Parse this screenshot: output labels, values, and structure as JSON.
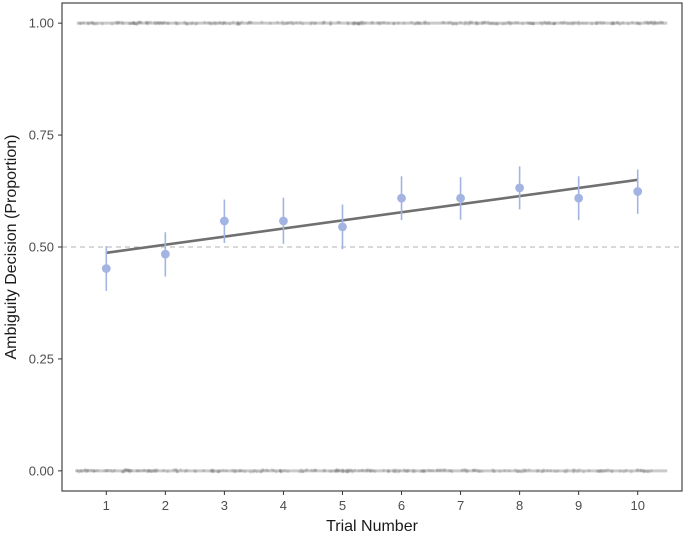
{
  "chart_data": {
    "type": "scatter",
    "title": "",
    "xlabel": "Trial Number",
    "ylabel": "Ambiguity Decision (Proportion)",
    "x_ticks": [
      1,
      2,
      3,
      4,
      5,
      6,
      7,
      8,
      9,
      10
    ],
    "x_tick_labels": [
      "1",
      "2",
      "3",
      "4",
      "5",
      "6",
      "7",
      "8",
      "9",
      "10"
    ],
    "y_ticks": [
      0,
      0.25,
      0.5,
      0.75,
      1
    ],
    "y_tick_labels": [
      "0.00",
      "0.25",
      "0.50",
      "0.75",
      "1.00"
    ],
    "xlim": [
      0.25,
      10.75
    ],
    "ylim": [
      -0.045,
      1.045
    ],
    "grid": false,
    "reference_line": {
      "y": 0.5,
      "style": "dashed",
      "color": "#b3b3b3"
    },
    "points": {
      "color": "#a3b4e3",
      "x": [
        1,
        2,
        3,
        4,
        5,
        6,
        7,
        8,
        9,
        10
      ],
      "y": [
        0.452,
        0.484,
        0.558,
        0.558,
        0.545,
        0.609,
        0.609,
        0.632,
        0.609,
        0.624
      ],
      "ymin": [
        0.402,
        0.434,
        0.509,
        0.507,
        0.495,
        0.56,
        0.561,
        0.584,
        0.56,
        0.574
      ],
      "ymax": [
        0.502,
        0.533,
        0.606,
        0.61,
        0.595,
        0.658,
        0.656,
        0.68,
        0.658,
        0.673
      ]
    },
    "trend_line": {
      "color": "#707070",
      "x": [
        1,
        10
      ],
      "y": [
        0.487,
        0.65
      ]
    },
    "raw_rug": {
      "color": "#9e9e9e",
      "x_range": [
        0.5,
        10.5
      ],
      "y_levels": [
        0,
        1
      ]
    }
  }
}
